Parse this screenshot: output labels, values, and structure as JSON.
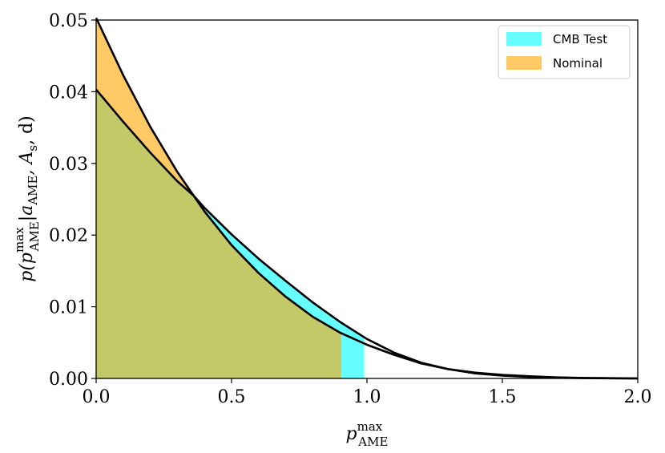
{
  "chart_data": {
    "type": "area",
    "xlabel": {
      "base": "p",
      "sup": "max",
      "sub": "AME"
    },
    "ylabel": {
      "text": "p(p",
      "sup": "max",
      "sub": "AME",
      "rest": "|a",
      "sub2": "AME",
      "rest2": ", A",
      "sub3": "s",
      "rest3": ", d)"
    },
    "xlim": [
      0.0,
      2.0
    ],
    "ylim": [
      0.0,
      0.05
    ],
    "x_ticks": [
      "0.0",
      "0.5",
      "1.0",
      "1.5",
      "2.0"
    ],
    "y_ticks": [
      "0.00",
      "0.01",
      "0.02",
      "0.03",
      "0.04",
      "0.05"
    ],
    "grid": false,
    "legend_position": "top-right",
    "series": [
      {
        "name": "CMB Test",
        "color": "#00ffff",
        "fill_alpha": 0.6,
        "fill_upto": 0.99,
        "x": [
          0.0,
          0.1,
          0.2,
          0.3,
          0.36,
          0.4,
          0.5,
          0.6,
          0.7,
          0.8,
          0.9,
          1.0,
          1.1,
          1.2,
          1.3,
          1.4,
          1.5,
          1.6,
          1.7,
          1.8,
          1.9,
          2.0
        ],
        "y": [
          0.0403,
          0.0358,
          0.0315,
          0.0275,
          0.0255,
          0.0238,
          0.0201,
          0.0167,
          0.0136,
          0.0106,
          0.0079,
          0.0055,
          0.0036,
          0.0022,
          0.0013,
          0.0007,
          0.0004,
          0.0002,
          0.0001,
          5e-05,
          2e-05,
          0.0
        ]
      },
      {
        "name": "Nominal",
        "color": "#ffa500",
        "fill_alpha": 0.6,
        "fill_upto": 0.905,
        "x": [
          0.0,
          0.1,
          0.2,
          0.3,
          0.36,
          0.4,
          0.5,
          0.6,
          0.7,
          0.8,
          0.9,
          1.0,
          1.1,
          1.2,
          1.3,
          1.4,
          1.5,
          1.6,
          1.7,
          1.8,
          1.9,
          2.0
        ],
        "y": [
          0.0503,
          0.0423,
          0.0351,
          0.0288,
          0.0255,
          0.0233,
          0.0186,
          0.0147,
          0.0114,
          0.0086,
          0.0064,
          0.0047,
          0.0033,
          0.0021,
          0.0013,
          0.0008,
          0.0005,
          0.0003,
          0.00015,
          7e-05,
          3e-05,
          0.0
        ]
      }
    ]
  }
}
